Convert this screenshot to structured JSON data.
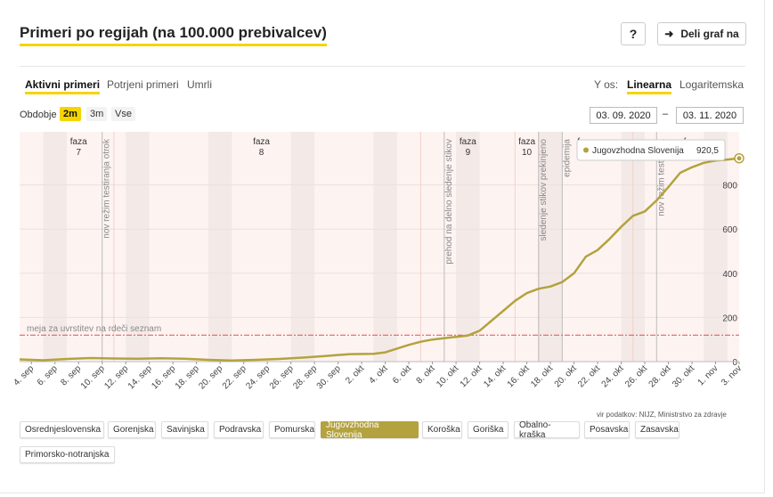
{
  "header": {
    "title": "Primeri po regijah (na 100.000 prebivalcev)",
    "help_label": "?",
    "share_label": "Deli graf na"
  },
  "metric_tabs": [
    {
      "label": "Aktivni primeri",
      "active": true
    },
    {
      "label": "Potrjeni primeri",
      "active": false
    },
    {
      "label": "Umrli",
      "active": false
    }
  ],
  "yaxis_toggle": {
    "label": "Y os:",
    "options": [
      "Linearna",
      "Logaritemska"
    ],
    "active": "Linearna"
  },
  "period": {
    "label": "Obdobje",
    "options": [
      "2m",
      "3m",
      "Vse"
    ],
    "active": "2m"
  },
  "date_range": {
    "from": "03. 09. 2020",
    "separator": "–",
    "to": "03. 11. 2020"
  },
  "source": "vir podatkov: NIJZ, Ministrstvo za zdravje",
  "regions": [
    "Osrednjeslovenska",
    "Gorenjska",
    "Savinjska",
    "Podravska",
    "Pomurska",
    "Jugovzhodna Slovenija",
    "Koroška",
    "Goriška",
    "Obalno-kraška",
    "Posavska",
    "Zasavska",
    "Primorsko-notranjska"
  ],
  "active_region": "Jugovzhodna Slovenija",
  "colors": {
    "accent": "#f5d500",
    "line": "#b4a23e",
    "threshold": "#e05050"
  },
  "chart_data": {
    "type": "line",
    "x_ticks": [
      "4. sep",
      "6. sep",
      "8. sep",
      "10. sep",
      "12. sep",
      "14. sep",
      "16. sep",
      "18. sep",
      "20. sep",
      "22. sep",
      "24. sep",
      "26. sep",
      "28. sep",
      "30. sep",
      "2. okt",
      "4. okt",
      "6. okt",
      "8. okt",
      "10. okt",
      "12. okt",
      "14. okt",
      "16. okt",
      "18. okt",
      "20. okt",
      "22. okt",
      "24. okt",
      "26. okt",
      "28. okt",
      "30. okt",
      "1. nov",
      "3. nov"
    ],
    "ylim": [
      0,
      1000
    ],
    "yticks": [
      0,
      200,
      400,
      600,
      800
    ],
    "grid": true,
    "series": [
      {
        "name": "Jugovzhodna Slovenija",
        "x": [
          "3. 9.",
          "5. 9.",
          "7. 9.",
          "9. 9.",
          "11. 9.",
          "13. 9.",
          "15. 9.",
          "17. 9.",
          "19. 9.",
          "21. 9.",
          "23. 9.",
          "25. 9.",
          "27. 9.",
          "29. 9.",
          "1. 10.",
          "3. 10.",
          "4. 10.",
          "6. 10.",
          "7. 10.",
          "8. 10.",
          "10. 10.",
          "11. 10.",
          "12. 10.",
          "14. 10.",
          "15. 10.",
          "16. 10.",
          "17. 10.",
          "18. 10.",
          "19. 10.",
          "20. 10.",
          "21. 10.",
          "22. 10.",
          "23. 10.",
          "24. 10.",
          "25. 10.",
          "26. 10.",
          "27. 10.",
          "28. 10.",
          "29. 10.",
          "30. 10.",
          "31. 10.",
          "1. 11.",
          "2. 11.",
          "3. 11."
        ],
        "y": [
          10,
          6,
          12,
          16,
          14,
          13,
          15,
          13,
          8,
          5,
          8,
          12,
          18,
          26,
          34,
          35,
          42,
          76,
          90,
          100,
          112,
          118,
          140,
          230,
          275,
          310,
          330,
          340,
          360,
          400,
          475,
          505,
          555,
          610,
          660,
          680,
          730,
          790,
          855,
          880,
          900,
          910,
          915,
          920.5
        ]
      }
    ],
    "threshold": {
      "value": 120,
      "label": "meja za uvrstitev na rdeči seznam"
    },
    "phases": [
      {
        "label": "faza",
        "number": "7"
      },
      {
        "label": "faza",
        "number": "8"
      },
      {
        "label": "faza",
        "number": "9"
      },
      {
        "label": "faza",
        "number": "10"
      },
      {
        "label": "faza",
        "number": ""
      },
      {
        "label": "faza",
        "number": ""
      }
    ],
    "annotations": [
      {
        "date": "10. 9.",
        "text": "nov režim testiranja otrok"
      },
      {
        "date": "9. 10.",
        "text": "prehod na delno sledenje stikov"
      },
      {
        "date": "17. 10.",
        "text": "sledenje stikov prekinjeno"
      },
      {
        "date": "19. 10.",
        "text": "epidemija"
      },
      {
        "date": "27. 10.",
        "text": "nov režim testiranja"
      }
    ],
    "tooltip": {
      "series": "Jugovzhodna Slovenija",
      "value": "920,5"
    }
  }
}
